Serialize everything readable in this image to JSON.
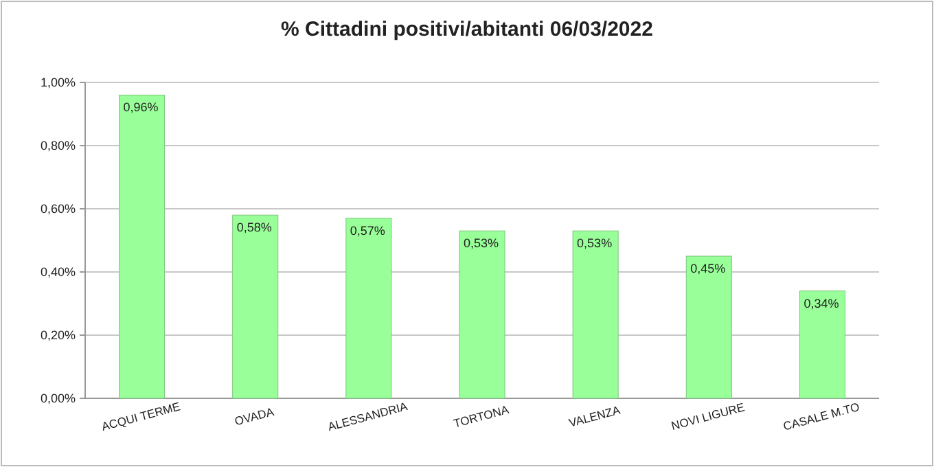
{
  "chart_data": {
    "type": "bar",
    "title": "% Cittadini positivi/abitanti 06/03/2022",
    "categories": [
      "ACQUI TERME",
      "OVADA",
      "ALESSANDRIA",
      "TORTONA",
      "VALENZA",
      "NOVI LIGURE",
      "CASALE M.TO"
    ],
    "values": [
      0.96,
      0.58,
      0.57,
      0.53,
      0.53,
      0.45,
      0.34
    ],
    "value_labels": [
      "0,96%",
      "0,58%",
      "0,57%",
      "0,53%",
      "0,53%",
      "0,45%",
      "0,34%"
    ],
    "color": "#99ff99",
    "ylim": [
      0,
      1
    ],
    "yticks": [
      {
        "value": 0,
        "label": "0,00%"
      },
      {
        "value": 0.2,
        "label": "0,20%"
      },
      {
        "value": 0.4,
        "label": "0,40%"
      },
      {
        "value": 0.6,
        "label": "0,60%"
      },
      {
        "value": 0.8,
        "label": "0,80%"
      },
      {
        "value": 1,
        "label": "1,00%"
      }
    ],
    "grid": "y"
  }
}
